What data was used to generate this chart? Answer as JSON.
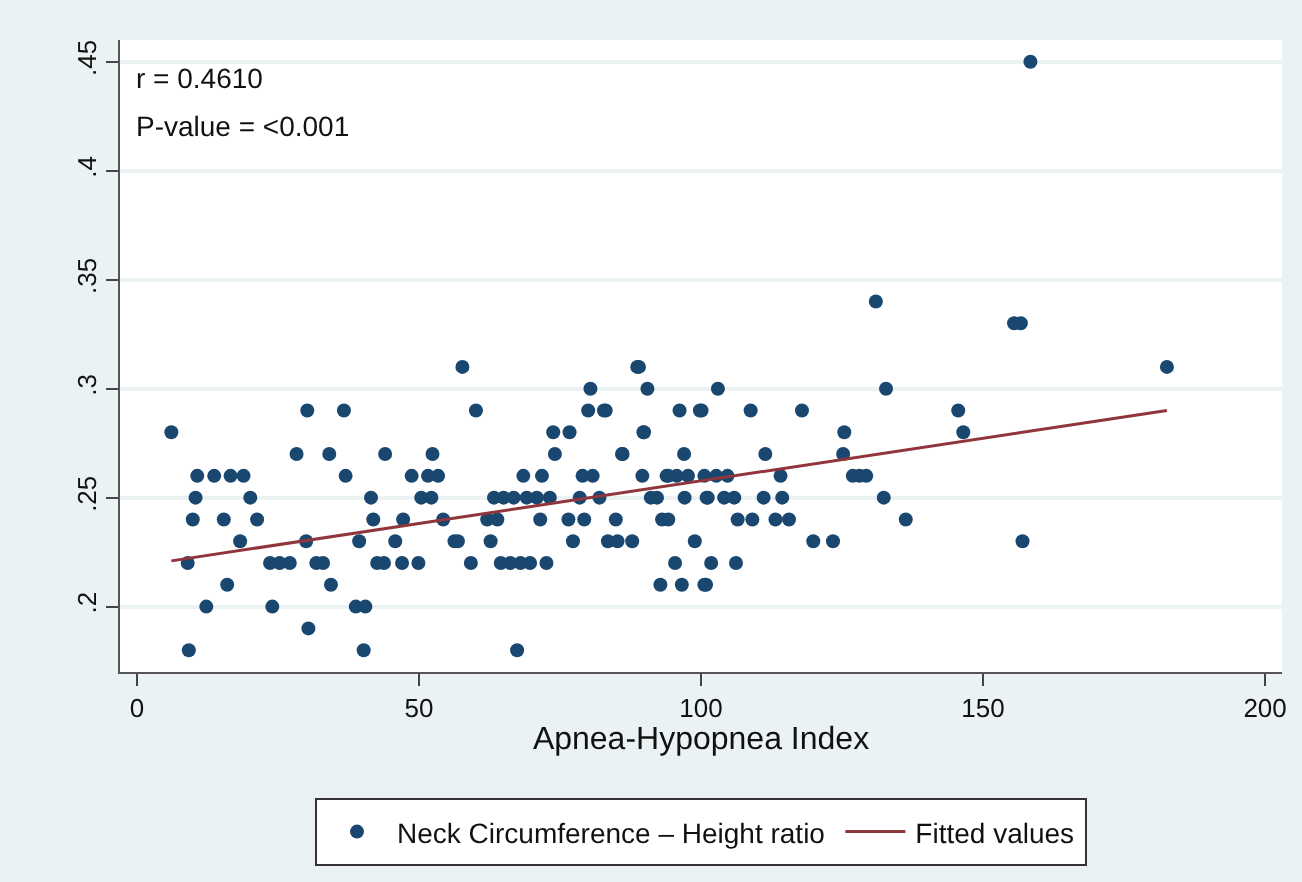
{
  "chart_data": {
    "type": "scatter",
    "xlabel": "Apnea-Hypopnea Index",
    "annotations": [
      "r = 0.4610",
      "P-value = <0.001"
    ],
    "xlim": [
      -3,
      203
    ],
    "ylim": [
      0.17,
      0.46
    ],
    "xticks": [
      0,
      50,
      100,
      150,
      200
    ],
    "yticks": [
      {
        "value": 0.2,
        "label": ".2"
      },
      {
        "value": 0.25,
        "label": ".25"
      },
      {
        "value": 0.3,
        "label": ".3"
      },
      {
        "value": 0.35,
        "label": ".35"
      },
      {
        "value": 0.4,
        "label": ".4"
      },
      {
        "value": 0.45,
        "label": ".45"
      }
    ],
    "grid": "y",
    "legend": "bottom",
    "series": [
      {
        "name": "Neck Circumference – Height ratio",
        "marker": "circle",
        "color": "#1a476f",
        "x": [
          57.7,
          88.7,
          80.4,
          90.5,
          30.2,
          36.7,
          60.1,
          80,
          82.8,
          96.2,
          99.8,
          6.1,
          73.8,
          76.7,
          89.8,
          28.3,
          34.1,
          44,
          52.4,
          74.1,
          86,
          97,
          10.7,
          13.7,
          16.6,
          18.9,
          37,
          48.7,
          51.6,
          53.4,
          68.5,
          71.8,
          79,
          80.8,
          89.6,
          94.2,
          97.7,
          10.4,
          20.1,
          41.5,
          50.4,
          52.2,
          63.3,
          65,
          66.8,
          69.1,
          70.9,
          73.2,
          78.5,
          82,
          92.2,
          97.1,
          101,
          9.9,
          15.4,
          21.3,
          41.9,
          47.2,
          54.3,
          62.1,
          63.9,
          71.5,
          76.5,
          79.3,
          84.9,
          18.3,
          30,
          39.4,
          45.8,
          56.3,
          56.9,
          62.7,
          77.3,
          83.5,
          87.8,
          98.9,
          9,
          23.6,
          25.3,
          27.1,
          31.8,
          33,
          42.6,
          43.8,
          47,
          49.9,
          59.2,
          64.5,
          66.2,
          68,
          69.7,
          72.6,
          95.4,
          16,
          34.4,
          92.8,
          96.6,
          100.6,
          12.3,
          24,
          38.8,
          40.5,
          30.4,
          9.2,
          40.2,
          67.4,
          158.4,
          131,
          155.5,
          156.7,
          89,
          182.6,
          103,
          132.8,
          83.1,
          100.1,
          108.8,
          117.9,
          145.6,
          89.9,
          125.4,
          146.5,
          86.1,
          111.4,
          125.2,
          93.9,
          95.7,
          100.6,
          102.7,
          104.7,
          114.1,
          126.9,
          128.1,
          129.3,
          91.1,
          101.2,
          104.1,
          105.9,
          111.1,
          114.4,
          132.4,
          93.1,
          94.2,
          106.5,
          109.1,
          113.2,
          115.6,
          136.3,
          85.2,
          119.9,
          123.4,
          157,
          101.8,
          106.2,
          100.9
        ],
        "values": [
          0.31,
          0.31,
          0.3,
          0.3,
          0.29,
          0.29,
          0.29,
          0.29,
          0.29,
          0.29,
          0.29,
          0.28,
          0.28,
          0.28,
          0.28,
          0.27,
          0.27,
          0.27,
          0.27,
          0.27,
          0.27,
          0.27,
          0.26,
          0.26,
          0.26,
          0.26,
          0.26,
          0.26,
          0.26,
          0.26,
          0.26,
          0.26,
          0.26,
          0.26,
          0.26,
          0.26,
          0.26,
          0.25,
          0.25,
          0.25,
          0.25,
          0.25,
          0.25,
          0.25,
          0.25,
          0.25,
          0.25,
          0.25,
          0.25,
          0.25,
          0.25,
          0.25,
          0.25,
          0.24,
          0.24,
          0.24,
          0.24,
          0.24,
          0.24,
          0.24,
          0.24,
          0.24,
          0.24,
          0.24,
          0.24,
          0.23,
          0.23,
          0.23,
          0.23,
          0.23,
          0.23,
          0.23,
          0.23,
          0.23,
          0.23,
          0.23,
          0.22,
          0.22,
          0.22,
          0.22,
          0.22,
          0.22,
          0.22,
          0.22,
          0.22,
          0.22,
          0.22,
          0.22,
          0.22,
          0.22,
          0.22,
          0.22,
          0.22,
          0.21,
          0.21,
          0.21,
          0.21,
          0.21,
          0.2,
          0.2,
          0.2,
          0.2,
          0.19,
          0.18,
          0.18,
          0.18,
          0.45,
          0.34,
          0.33,
          0.33,
          0.31,
          0.31,
          0.3,
          0.3,
          0.29,
          0.29,
          0.29,
          0.29,
          0.29,
          0.28,
          0.28,
          0.28,
          0.27,
          0.27,
          0.27,
          0.26,
          0.26,
          0.26,
          0.26,
          0.26,
          0.26,
          0.26,
          0.26,
          0.26,
          0.25,
          0.25,
          0.25,
          0.25,
          0.25,
          0.25,
          0.25,
          0.24,
          0.24,
          0.24,
          0.24,
          0.24,
          0.24,
          0.24,
          0.23,
          0.23,
          0.23,
          0.23,
          0.22,
          0.22,
          0.21
        ]
      },
      {
        "name": "Fitted values",
        "type": "line",
        "marker": "none",
        "color": "#90353b",
        "x": [
          6.1,
          182.6
        ],
        "values": [
          0.221,
          0.29
        ]
      }
    ]
  }
}
